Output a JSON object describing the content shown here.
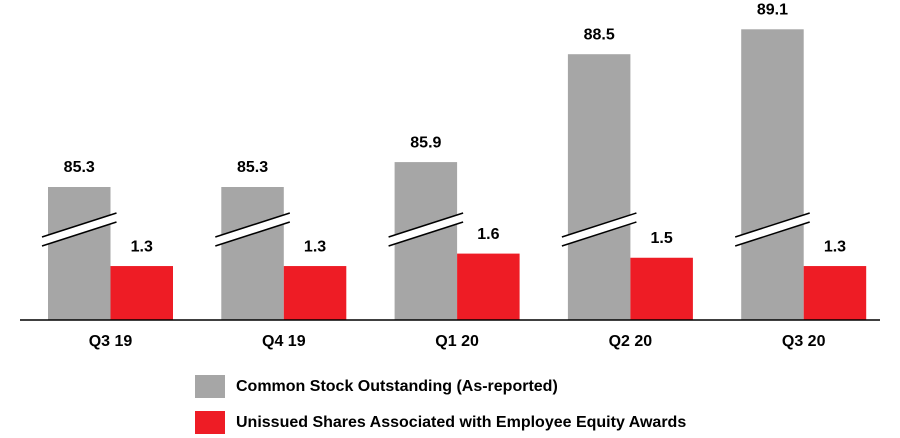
{
  "chart_data": {
    "type": "bar",
    "categories": [
      "Q3 19",
      "Q4 19",
      "Q1 20",
      "Q2 20",
      "Q3 20"
    ],
    "series": [
      {
        "name": "Common Stock Outstanding (As-reported)",
        "color": "#a6a6a6",
        "values": [
          85.3,
          85.3,
          85.9,
          88.5,
          89.1
        ]
      },
      {
        "name": "Unissued Shares Associated with Employee Equity Awards",
        "color": "#ee1c25",
        "values": [
          1.3,
          1.3,
          1.6,
          1.5,
          1.3
        ]
      }
    ],
    "axis_break": true
  }
}
